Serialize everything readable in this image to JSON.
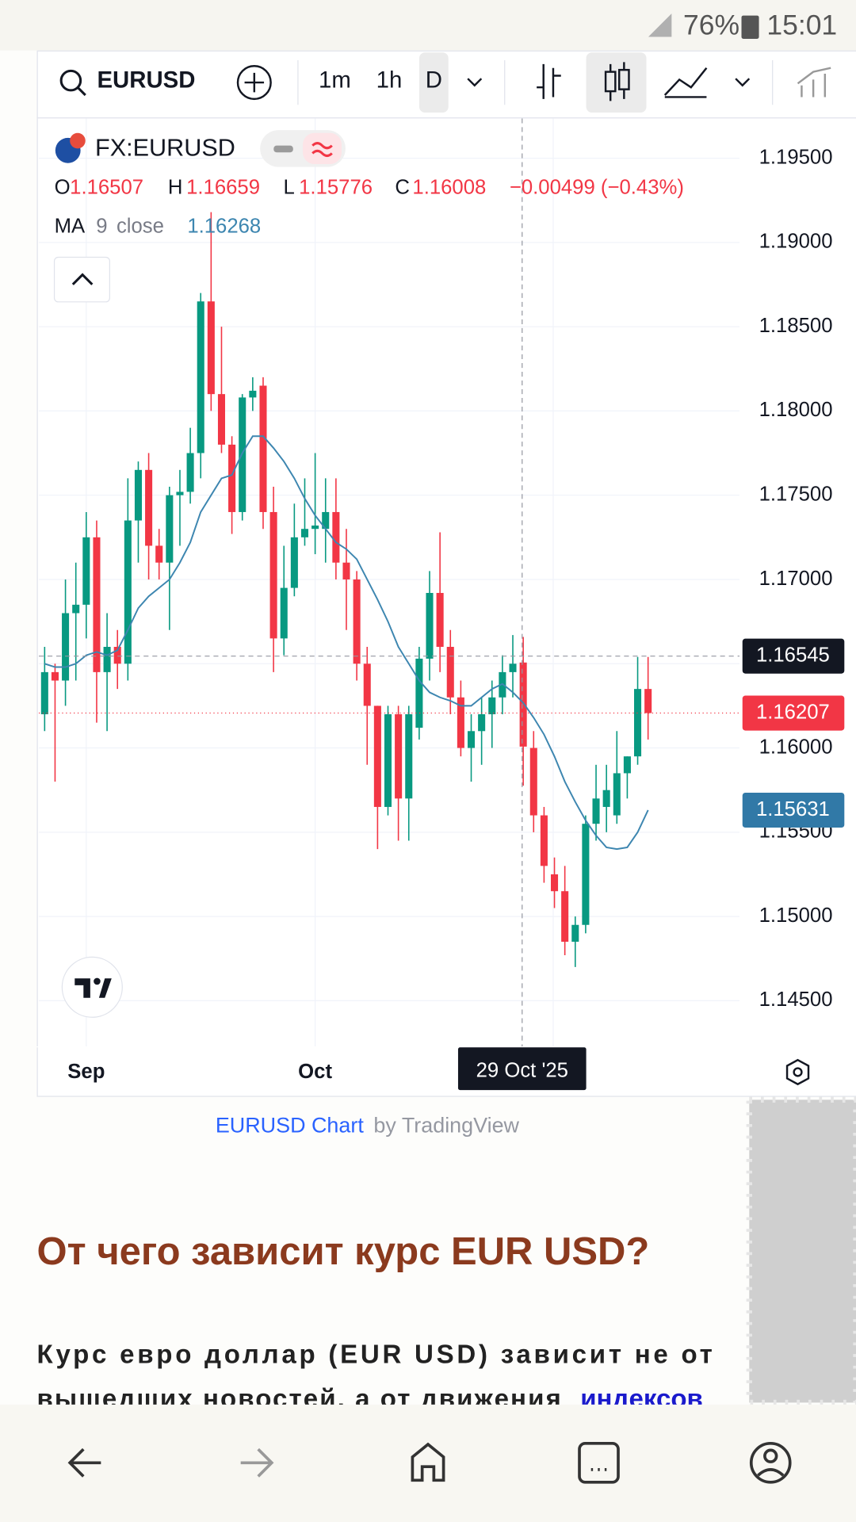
{
  "status_bar": {
    "battery": "76%",
    "time": "15:01"
  },
  "toolbar": {
    "symbol": "EURUSD",
    "intervals": [
      "1m",
      "1h",
      "D"
    ]
  },
  "chart_data": {
    "type": "candlestick",
    "symbol": "FX:EURUSD",
    "ohlc_labels": [
      "O",
      "H",
      "L",
      "C"
    ],
    "change_label": "−0.00499 (−0.43%)",
    "up_color": "#089981",
    "down_color": "#f23645",
    "grid": true,
    "ylim": [
      1.14229,
      1.19736
    ],
    "yticks": [
      {
        "value": 1.145,
        "label": "1.14500"
      },
      {
        "value": 1.15,
        "label": "1.15000"
      },
      {
        "value": 1.155,
        "label": "1.15500"
      },
      {
        "value": 1.16,
        "label": "1.16000"
      },
      {
        "value": 1.165,
        "label": "1.16500"
      },
      {
        "value": 1.17,
        "label": "1.17000"
      },
      {
        "value": 1.175,
        "label": "1.17500"
      },
      {
        "value": 1.18,
        "label": "1.18000"
      },
      {
        "value": 1.185,
        "label": "1.18500"
      },
      {
        "value": 1.19,
        "label": "1.19000"
      },
      {
        "value": 1.195,
        "label": "1.19500"
      }
    ],
    "categories": [
      null,
      null,
      null,
      null,
      "Sep",
      null,
      null,
      null,
      null,
      null,
      null,
      null,
      null,
      null,
      null,
      null,
      null,
      null,
      null,
      null,
      null,
      null,
      null,
      null,
      null,
      null,
      "Oct",
      null,
      null,
      null,
      null,
      null,
      null,
      null,
      null,
      null,
      null,
      null,
      null,
      null,
      null,
      null,
      null,
      null,
      null,
      null,
      null,
      null,
      null,
      null,
      null,
      null,
      null,
      null,
      null,
      null,
      null,
      null,
      null
    ],
    "open": [
      1.162,
      1.1645,
      1.164,
      1.168,
      1.1685,
      1.1725,
      1.1645,
      1.166,
      1.165,
      1.1735,
      1.1765,
      1.172,
      1.171,
      1.175,
      1.1752,
      1.1775,
      1.1865,
      1.181,
      1.178,
      1.174,
      1.1808,
      1.1815,
      1.174,
      1.1665,
      1.1695,
      1.1725,
      1.173,
      1.173,
      1.174,
      1.171,
      1.17,
      1.165,
      1.1625,
      1.1565,
      1.162,
      1.157,
      1.1612,
      1.1653,
      1.1692,
      1.166,
      1.163,
      1.16,
      1.161,
      1.162,
      1.163,
      1.1645,
      1.16507,
      1.16,
      1.156,
      1.1525,
      1.1515,
      1.1485,
      1.1495,
      1.1555,
      1.1565,
      1.156,
      1.1585,
      1.1595,
      1.1635
    ],
    "high": [
      1.166,
      1.165,
      1.17,
      1.171,
      1.174,
      1.1735,
      1.168,
      1.167,
      1.176,
      1.177,
      1.1775,
      1.173,
      1.1755,
      1.1765,
      1.179,
      1.187,
      1.1918,
      1.185,
      1.1785,
      1.181,
      1.182,
      1.182,
      1.1755,
      1.172,
      1.1745,
      1.176,
      1.1775,
      1.176,
      1.176,
      1.173,
      1.1705,
      1.166,
      1.1625,
      1.1625,
      1.1625,
      1.1625,
      1.166,
      1.1705,
      1.1728,
      1.167,
      1.164,
      1.162,
      1.163,
      1.164,
      1.1655,
      1.1667,
      1.16659,
      1.161,
      1.1565,
      1.1535,
      1.153,
      1.15,
      1.156,
      1.159,
      1.159,
      1.161,
      1.1595,
      1.1654,
      1.1654
    ],
    "low": [
      1.161,
      1.158,
      1.1625,
      1.164,
      1.1665,
      1.1615,
      1.161,
      1.1635,
      1.164,
      1.171,
      1.17,
      1.17,
      1.167,
      1.172,
      1.1745,
      1.176,
      1.18,
      1.1775,
      1.1727,
      1.1735,
      1.18,
      1.173,
      1.1645,
      1.1655,
      1.169,
      1.172,
      1.1715,
      1.171,
      1.17,
      1.167,
      1.164,
      1.159,
      1.154,
      1.156,
      1.1545,
      1.1545,
      1.1605,
      1.164,
      1.1645,
      1.162,
      1.1595,
      1.158,
      1.159,
      1.16,
      1.162,
      1.163,
      1.15776,
      1.155,
      1.152,
      1.1505,
      1.1477,
      1.147,
      1.149,
      1.1545,
      1.155,
      1.1555,
      1.157,
      1.159,
      1.1605
    ],
    "close": [
      1.1645,
      1.164,
      1.168,
      1.1685,
      1.1725,
      1.1645,
      1.166,
      1.165,
      1.1735,
      1.1765,
      1.172,
      1.171,
      1.175,
      1.1752,
      1.1775,
      1.1865,
      1.181,
      1.178,
      1.174,
      1.1808,
      1.1812,
      1.174,
      1.1665,
      1.1695,
      1.1725,
      1.173,
      1.1732,
      1.174,
      1.171,
      1.17,
      1.165,
      1.1625,
      1.1565,
      1.162,
      1.157,
      1.162,
      1.1653,
      1.1692,
      1.166,
      1.163,
      1.16,
      1.161,
      1.162,
      1.163,
      1.1645,
      1.165,
      1.16008,
      1.156,
      1.153,
      1.1515,
      1.1485,
      1.1495,
      1.1555,
      1.157,
      1.1575,
      1.1585,
      1.1595,
      1.1635,
      1.16207
    ],
    "indicator": {
      "name": "MA",
      "length": 9,
      "source": "close",
      "color": "#3d86b0",
      "values": [
        1.165,
        1.1648,
        1.1648,
        1.165,
        1.1655,
        1.1657,
        1.1655,
        1.1658,
        1.167,
        1.1683,
        1.169,
        1.1695,
        1.17,
        1.171,
        1.1722,
        1.174,
        1.175,
        1.176,
        1.1762,
        1.1775,
        1.1785,
        1.1785,
        1.1778,
        1.177,
        1.176,
        1.1748,
        1.1738,
        1.173,
        1.1722,
        1.1718,
        1.1712,
        1.17,
        1.1688,
        1.1675,
        1.166,
        1.165,
        1.164,
        1.1633,
        1.163,
        1.1628,
        1.1625,
        1.1625,
        1.163,
        1.1635,
        1.1638,
        1.1633,
        1.16268,
        1.1618,
        1.1608,
        1.1595,
        1.158,
        1.1568,
        1.1557,
        1.1548,
        1.1541,
        1.154,
        1.1541,
        1.155,
        1.15631
      ]
    },
    "crosshair_price": 1.16545,
    "crosshair_label": "29 Oct '25",
    "last_price": 1.16207
  },
  "chart_credit": {
    "link": "EURUSD Chart",
    "by": "by TradingView"
  },
  "article": {
    "heading": "От чего зависит курс EUR USD?",
    "lines": [
      "Курс евро доллар (EUR USD) зависит не от",
      "вышедших новостей, а от движения"
    ],
    "link": "индексов"
  }
}
